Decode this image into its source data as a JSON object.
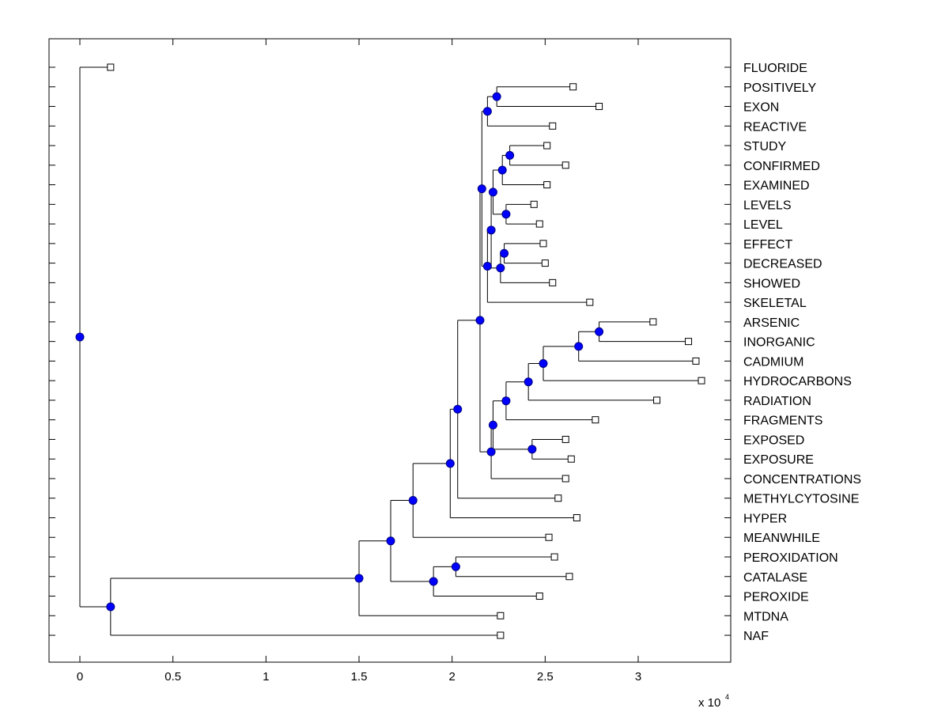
{
  "chart_data": {
    "type": "dendrogram",
    "title": "",
    "xlabel": "",
    "ylabel": "",
    "grid": false,
    "x_multiplier": "x 10",
    "x_multiplier_exponent": "4",
    "x_range": [
      -1600,
      35000
    ],
    "x_ticks": [
      0,
      5000,
      10000,
      15000,
      20000,
      25000,
      30000
    ],
    "x_tick_labels": [
      "0",
      "0.5",
      "1",
      "1.5",
      "2",
      "2.5",
      "3"
    ],
    "leaves": [
      {
        "id": "FLUORIDE",
        "label": "FLUORIDE",
        "x": 1650
      },
      {
        "id": "POSITIVELY",
        "label": "POSITIVELY",
        "x": 26500
      },
      {
        "id": "EXON",
        "label": "EXON",
        "x": 27900
      },
      {
        "id": "REACTIVE",
        "label": "REACTIVE",
        "x": 25400
      },
      {
        "id": "STUDY",
        "label": "STUDY",
        "x": 25100
      },
      {
        "id": "CONFIRMED",
        "label": "CONFIRMED",
        "x": 26100
      },
      {
        "id": "EXAMINED",
        "label": "EXAMINED",
        "x": 25100
      },
      {
        "id": "LEVELS",
        "label": "LEVELS",
        "x": 24400
      },
      {
        "id": "LEVEL",
        "label": "LEVEL",
        "x": 24700
      },
      {
        "id": "EFFECT",
        "label": "EFFECT",
        "x": 24900
      },
      {
        "id": "DECREASED",
        "label": "DECREASED",
        "x": 25000
      },
      {
        "id": "SHOWED",
        "label": "SHOWED",
        "x": 25400
      },
      {
        "id": "SKELETAL",
        "label": "SKELETAL",
        "x": 27400
      },
      {
        "id": "ARSENIC",
        "label": "ARSENIC",
        "x": 30800
      },
      {
        "id": "INORGANIC",
        "label": "INORGANIC",
        "x": 32700
      },
      {
        "id": "CADMIUM",
        "label": "CADMIUM",
        "x": 33100
      },
      {
        "id": "HYDROCARBONS",
        "label": "HYDROCARBONS",
        "x": 33400
      },
      {
        "id": "RADIATION",
        "label": "RADIATION",
        "x": 31000
      },
      {
        "id": "FRAGMENTS",
        "label": "FRAGMENTS",
        "x": 27700
      },
      {
        "id": "EXPOSED",
        "label": "EXPOSED",
        "x": 26100
      },
      {
        "id": "EXPOSURE",
        "label": "EXPOSURE",
        "x": 26400
      },
      {
        "id": "CONCENTRATIONS",
        "label": "CONCENTRATIONS",
        "x": 26100
      },
      {
        "id": "METHYLCYTOSINE",
        "label": "METHYLCYTOSINE",
        "x": 25700
      },
      {
        "id": "HYPER",
        "label": "HYPER",
        "x": 26700
      },
      {
        "id": "MEANWHILE",
        "label": "MEANWHILE",
        "x": 25200
      },
      {
        "id": "PEROXIDATION",
        "label": "PEROXIDATION",
        "x": 25500
      },
      {
        "id": "CATALASE",
        "label": "CATALASE",
        "x": 26300
      },
      {
        "id": "PEROXIDE",
        "label": "PEROXIDE",
        "x": 24700
      },
      {
        "id": "MTDNA",
        "label": "MTDNA",
        "x": 22600
      },
      {
        "id": "NAF",
        "label": "NAF",
        "x": 22600
      }
    ],
    "internal_nodes": [
      {
        "id": "n_pos_exon",
        "x": 22400,
        "children": [
          "POSITIVELY",
          "EXON"
        ]
      },
      {
        "id": "n_pos_exon_react",
        "x": 21900,
        "children": [
          "n_pos_exon",
          "REACTIVE"
        ]
      },
      {
        "id": "n_study_conf",
        "x": 23100,
        "children": [
          "STUDY",
          "CONFIRMED"
        ]
      },
      {
        "id": "n_study_conf_exam",
        "x": 22700,
        "children": [
          "n_study_conf",
          "EXAMINED"
        ]
      },
      {
        "id": "n_levels_level",
        "x": 22900,
        "children": [
          "LEVELS",
          "LEVEL"
        ]
      },
      {
        "id": "n_study_levels",
        "x": 22200,
        "children": [
          "n_study_conf_exam",
          "n_levels_level"
        ]
      },
      {
        "id": "n_effect_decr",
        "x": 22800,
        "children": [
          "EFFECT",
          "DECREASED"
        ]
      },
      {
        "id": "n_effect_showed",
        "x": 22600,
        "children": [
          "n_effect_decr",
          "SHOWED"
        ]
      },
      {
        "id": "n_study_showed",
        "x": 22100,
        "children": [
          "n_study_levels",
          "n_effect_showed"
        ]
      },
      {
        "id": "n_study_skeletal",
        "x": 21900,
        "children": [
          "n_study_showed",
          "SKELETAL"
        ]
      },
      {
        "id": "n_upper",
        "x": 21600,
        "children": [
          "n_pos_exon_react",
          "n_study_skeletal"
        ]
      },
      {
        "id": "n_ars_inorg",
        "x": 27900,
        "children": [
          "ARSENIC",
          "INORGANIC"
        ]
      },
      {
        "id": "n_ars_cadm",
        "x": 26800,
        "children": [
          "n_ars_inorg",
          "CADMIUM"
        ]
      },
      {
        "id": "n_ars_hydro",
        "x": 24900,
        "children": [
          "n_ars_cadm",
          "HYDROCARBONS"
        ]
      },
      {
        "id": "n_ars_rad",
        "x": 24100,
        "children": [
          "n_ars_hydro",
          "RADIATION"
        ]
      },
      {
        "id": "n_ars_frag",
        "x": 22900,
        "children": [
          "n_ars_rad",
          "FRAGMENTS"
        ]
      },
      {
        "id": "n_exposed_exposure",
        "x": 24300,
        "children": [
          "EXPOSED",
          "EXPOSURE"
        ]
      },
      {
        "id": "n_ars_exposed",
        "x": 22200,
        "children": [
          "n_ars_frag",
          "n_exposed_exposure"
        ]
      },
      {
        "id": "n_ars_conc",
        "x": 22100,
        "children": [
          "n_ars_exposed",
          "CONCENTRATIONS"
        ]
      },
      {
        "id": "n_big",
        "x": 21500,
        "children": [
          "n_upper",
          "n_ars_conc"
        ]
      },
      {
        "id": "n_big_methyl",
        "x": 20300,
        "children": [
          "n_big",
          "METHYLCYTOSINE"
        ]
      },
      {
        "id": "n_big_hyper",
        "x": 19900,
        "children": [
          "n_big_methyl",
          "HYPER"
        ]
      },
      {
        "id": "n_big_meanwhile",
        "x": 17900,
        "children": [
          "n_big_hyper",
          "MEANWHILE"
        ]
      },
      {
        "id": "n_perox_catal",
        "x": 20200,
        "children": [
          "PEROXIDATION",
          "CATALASE"
        ]
      },
      {
        "id": "n_perox_peroxide",
        "x": 19000,
        "children": [
          "n_perox_catal",
          "PEROXIDE"
        ]
      },
      {
        "id": "n_big_perox",
        "x": 16700,
        "children": [
          "n_big_meanwhile",
          "n_perox_peroxide"
        ]
      },
      {
        "id": "n_big_mtdna",
        "x": 15000,
        "children": [
          "n_big_perox",
          "MTDNA"
        ]
      },
      {
        "id": "n_big_naf",
        "x": 1650,
        "children": [
          "n_big_mtdna",
          "NAF"
        ]
      },
      {
        "id": "n_root",
        "x": 0,
        "children": [
          "FLUORIDE",
          "n_big_naf"
        ]
      }
    ],
    "leaf_marker": "square",
    "node_marker": "circle",
    "colors": {
      "node_fill": "#0000ff",
      "node_stroke": "#000080",
      "line": "#000000",
      "leaf_fill": "#ffffff",
      "background": "#ffffff"
    }
  }
}
